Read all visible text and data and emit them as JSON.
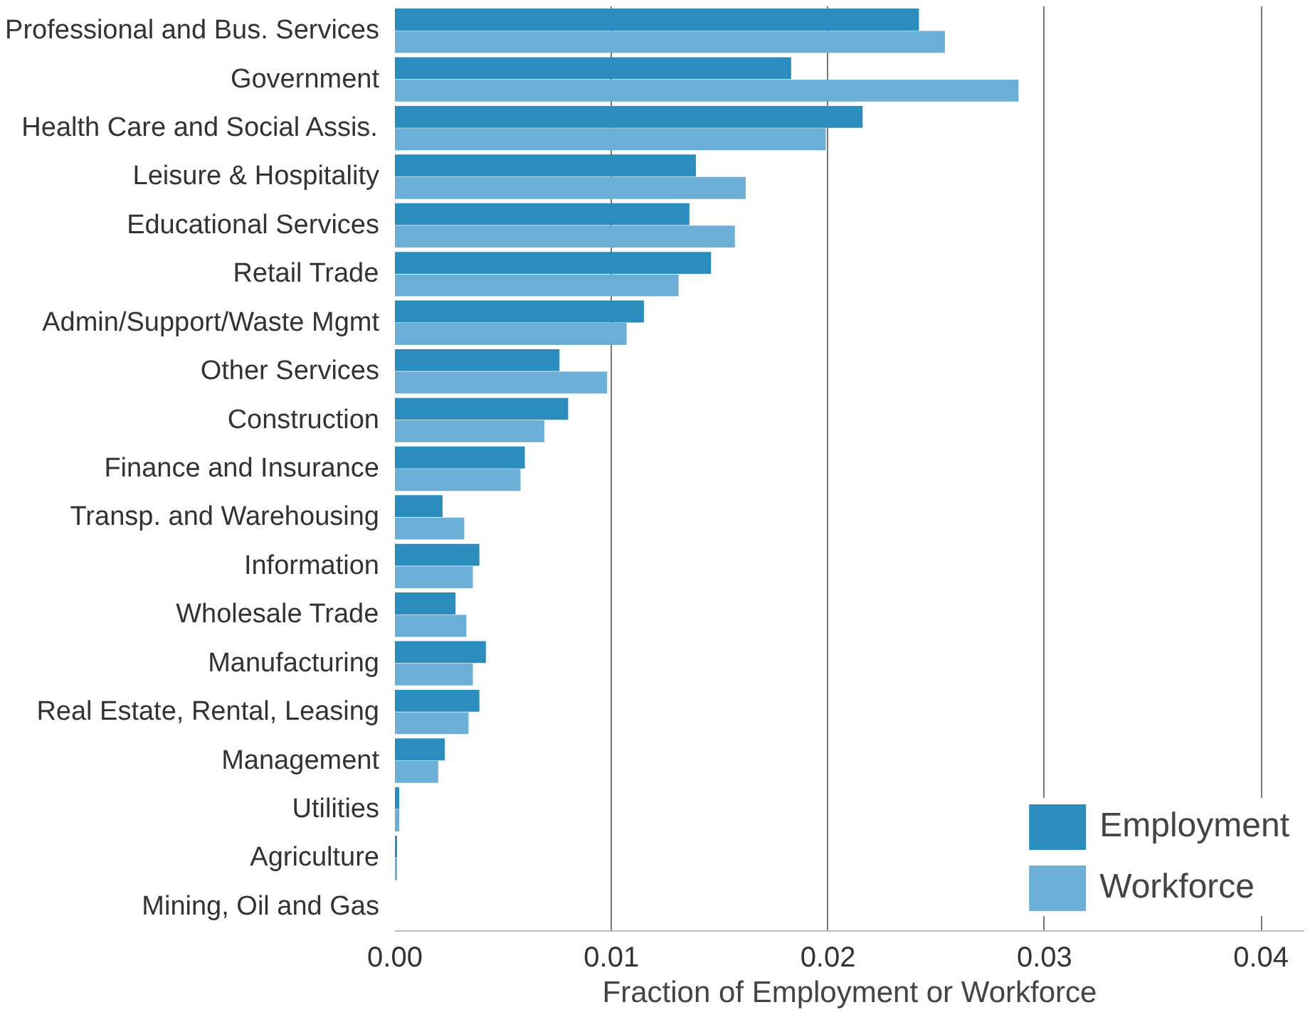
{
  "chart_data": {
    "type": "bar",
    "orientation": "horizontal",
    "xlabel": "Fraction of Employment or Workforce",
    "categories": [
      "Professional and Bus. Services",
      "Government",
      "Health Care and Social Assis.",
      "Leisure & Hospitality",
      "Educational Services",
      "Retail Trade",
      "Admin/Support/Waste Mgmt",
      "Other Services",
      "Construction",
      "Finance and Insurance",
      "Transp. and Warehousing",
      "Information",
      "Wholesale Trade",
      "Manufacturing",
      "Real Estate, Rental, Leasing",
      "Management",
      "Utilities",
      "Agriculture",
      "Mining, Oil and Gas"
    ],
    "series": [
      {
        "name": "Employment",
        "color": "#2b8cbe",
        "values": [
          0.0242,
          0.0183,
          0.0216,
          0.0139,
          0.0136,
          0.0146,
          0.0115,
          0.0076,
          0.008,
          0.006,
          0.0022,
          0.0039,
          0.0028,
          0.0042,
          0.0039,
          0.0023,
          0.0002,
          0.0001,
          0.0
        ]
      },
      {
        "name": "Workforce",
        "color": "#6baed6",
        "values": [
          0.0254,
          0.0288,
          0.0199,
          0.0162,
          0.0157,
          0.0131,
          0.0107,
          0.0098,
          0.0069,
          0.0058,
          0.0032,
          0.0036,
          0.0033,
          0.0036,
          0.0034,
          0.002,
          0.0002,
          0.0001,
          0.0
        ]
      }
    ],
    "xlim": [
      0,
      0.042
    ],
    "xticks": [
      {
        "value": 0,
        "label": "0.00"
      },
      {
        "value": 0.01,
        "label": "0.01"
      },
      {
        "value": 0.02,
        "label": "0.02"
      },
      {
        "value": 0.03,
        "label": "0.03"
      },
      {
        "value": 0.04,
        "label": "0.04"
      }
    ],
    "grid": "x",
    "legend": "bottom right"
  }
}
